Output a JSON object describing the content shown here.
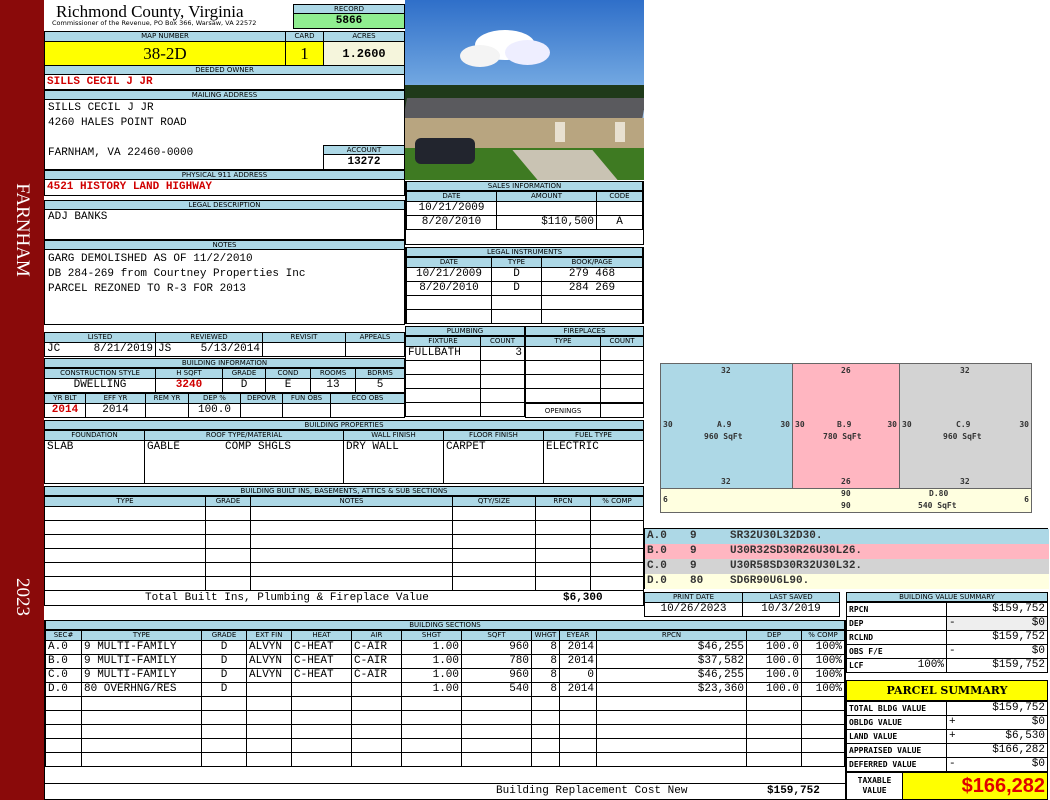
{
  "sidebar": {
    "district": "FARNHAM",
    "year": "2023"
  },
  "header": {
    "county": "Richmond County, Virginia",
    "subtitle": "Commissioner of the Revenue, PO Box 366, Warsaw, VA 22572",
    "record_label": "RECORD",
    "record": "5866"
  },
  "parcel": {
    "map_number_label": "MAP NUMBER",
    "map_number": "38-2D",
    "card_label": "CARD",
    "card": "1",
    "acres_label": "ACRES",
    "acres": "1.2600"
  },
  "owner": {
    "label": "DEEDED OWNER",
    "name": "SILLS CECIL J JR"
  },
  "mailing": {
    "label": "MAILING ADDRESS",
    "lines": [
      "SILLS CECIL J JR",
      "4260 HALES POINT ROAD",
      "",
      "FARNHAM, VA 22460-0000"
    ],
    "account_label": "ACCOUNT",
    "account": "13272"
  },
  "physical": {
    "label": "PHYSICAL 911 ADDRESS",
    "address": "4521 HISTORY LAND HIGHWAY"
  },
  "legal": {
    "label": "LEGAL DESCRIPTION",
    "text": "ADJ BANKS"
  },
  "notes": {
    "label": "NOTES",
    "lines": [
      "GARG DEMOLISHED AS OF 11/2/2010",
      "DB 284-269 from Courtney Properties Inc",
      "PARCEL REZONED TO R-3 FOR 2013"
    ]
  },
  "listing": {
    "listed_label": "LISTED",
    "listed_by": "JC",
    "listed_date": "8/21/2019",
    "reviewed_label": "REVIEWED",
    "reviewed_by": "JS",
    "reviewed_date": "5/13/2014",
    "revisit_label": "REVISIT",
    "revisit": "",
    "appeals_label": "APPEALS",
    "appeals": ""
  },
  "building_info": {
    "label": "BUILDING INFORMATION",
    "headers1": [
      "CONSTRUCTION STYLE",
      "H SQFT",
      "GRADE",
      "COND",
      "ROOMS",
      "BDRMS"
    ],
    "values1": [
      "DWELLING",
      "3240",
      "D",
      "E",
      "13",
      "5"
    ],
    "headers2": [
      "YR BLT",
      "EFF YR",
      "REM YR",
      "DEP %",
      "DEPOVR",
      "FUN OBS",
      "ECO OBS"
    ],
    "values2": [
      "2014",
      "2014",
      "",
      "100.0",
      "",
      "",
      ""
    ]
  },
  "sales": {
    "label": "SALES INFORMATION",
    "headers": [
      "DATE",
      "AMOUNT",
      "CODE"
    ],
    "rows": [
      [
        "10/21/2009",
        "",
        ""
      ],
      [
        "8/20/2010",
        "$110,500",
        "A"
      ]
    ]
  },
  "instruments": {
    "label": "LEGAL INSTRUMENTS",
    "headers": [
      "DATE",
      "TYPE",
      "BOOK/PAGE"
    ],
    "rows": [
      [
        "10/21/2009",
        "D",
        "279 468"
      ],
      [
        "8/20/2010",
        "D",
        "284 269"
      ],
      [
        "",
        "",
        ""
      ],
      [
        "",
        "",
        ""
      ]
    ]
  },
  "plumbing": {
    "label": "PLUMBING",
    "headers": [
      "FIXTURE",
      "COUNT"
    ],
    "rows": [
      [
        "FULLBATH",
        "3"
      ],
      [
        "",
        ""
      ],
      [
        "",
        ""
      ],
      [
        "",
        ""
      ],
      [
        "",
        ""
      ]
    ]
  },
  "fireplaces": {
    "label": "FIREPLACES",
    "headers": [
      "TYPE",
      "COUNT"
    ],
    "rows": [
      [
        "",
        ""
      ],
      [
        "",
        ""
      ],
      [
        "",
        ""
      ],
      [
        "",
        ""
      ]
    ],
    "openings_label": "OPENINGS",
    "openings": ""
  },
  "properties": {
    "label": "BUILDING PROPERTIES",
    "headers": [
      "FOUNDATION",
      "ROOF TYPE/MATERIAL",
      "WALL FINISH",
      "FLOOR FINISH",
      "FUEL TYPE"
    ],
    "foundation": "SLAB",
    "roof_type": "GABLE",
    "roof_material": "COMP SHGLS",
    "wall": "DRY WALL",
    "floor": "CARPET",
    "fuel": "ELECTRIC"
  },
  "builtins": {
    "label": "BUILDING BUILT INS, BASEMENTS, ATTICS & SUB SECTIONS",
    "headers": [
      "TYPE",
      "GRADE",
      "NOTES",
      "QTY/SIZE",
      "RPCN",
      "% COMP"
    ],
    "rows": [
      [
        "",
        "",
        "",
        "",
        "",
        ""
      ],
      [
        "",
        "",
        "",
        "",
        "",
        ""
      ],
      [
        "",
        "",
        "",
        "",
        "",
        ""
      ],
      [
        "",
        "",
        "",
        "",
        "",
        ""
      ],
      [
        "",
        "",
        "",
        "",
        "",
        ""
      ],
      [
        "",
        "",
        "",
        "",
        "",
        ""
      ]
    ],
    "total_label": "Total Built Ins, Plumbing & Fireplace Value",
    "total": "$6,300"
  },
  "dates": {
    "print_label": "PRINT DATE",
    "print_date": "10/26/2023",
    "saved_label": "LAST SAVED",
    "last_saved": "10/3/2019"
  },
  "sections": {
    "label": "BUILDING SECTIONS",
    "headers": [
      "SEC#",
      "TYPE",
      "GRADE",
      "EXT FIN",
      "HEAT",
      "AIR",
      "SHGT",
      "SQFT",
      "WHGT",
      "EYEAR",
      "RPCN",
      "DEP",
      "% COMP"
    ],
    "rows": [
      [
        "A.0",
        "9 MULTI-FAMILY",
        "D",
        "ALVYN",
        "C-HEAT",
        "C-AIR",
        "1.00",
        "960",
        "8",
        "2014",
        "$46,255",
        "100.0",
        "100%"
      ],
      [
        "B.0",
        "9 MULTI-FAMILY",
        "D",
        "ALVYN",
        "C-HEAT",
        "C-AIR",
        "1.00",
        "780",
        "8",
        "2014",
        "$37,582",
        "100.0",
        "100%"
      ],
      [
        "C.0",
        "9 MULTI-FAMILY",
        "D",
        "ALVYN",
        "C-HEAT",
        "C-AIR",
        "1.00",
        "960",
        "8",
        "0",
        "$46,255",
        "100.0",
        "100%"
      ],
      [
        "D.0",
        "80 OVERHNG/RES",
        "D",
        "",
        "",
        "",
        "1.00",
        "540",
        "8",
        "2014",
        "$23,360",
        "100.0",
        "100%"
      ],
      [
        "",
        "",
        "",
        "",
        "",
        "",
        "",
        "",
        "",
        "",
        "",
        "",
        ""
      ],
      [
        "",
        "",
        "",
        "",
        "",
        "",
        "",
        "",
        "",
        "",
        "",
        "",
        ""
      ],
      [
        "",
        "",
        "",
        "",
        "",
        "",
        "",
        "",
        "",
        "",
        "",
        "",
        ""
      ],
      [
        "",
        "",
        "",
        "",
        "",
        "",
        "",
        "",
        "",
        "",
        "",
        "",
        ""
      ],
      [
        "",
        "",
        "",
        "",
        "",
        "",
        "",
        "",
        "",
        "",
        "",
        "",
        ""
      ]
    ],
    "total_label": "Building Replacement Cost New",
    "total": "$159,752"
  },
  "sketch": {
    "sections": [
      {
        "label": "A.9",
        "sqft": "960 SqFt",
        "top": "32",
        "bottom": "32",
        "left": "30",
        "right": "30",
        "color": "#add8e6"
      },
      {
        "label": "B.9",
        "sqft": "780 SqFt",
        "top": "26",
        "bottom": "26",
        "left": "30",
        "right": "30",
        "color": "#ffb6c1"
      },
      {
        "label": "C.9",
        "sqft": "960 SqFt",
        "top": "32",
        "bottom": "32",
        "left": "30",
        "right": "30",
        "color": "#d3d3d3"
      },
      {
        "label": "D.80",
        "sqft": "540 SqFt",
        "top": "90",
        "bottom": "90",
        "left": "6",
        "right": "6",
        "color": "#ffffe0"
      }
    ],
    "codes": [
      [
        "A.0",
        "9",
        "SR32U30L32D30."
      ],
      [
        "B.0",
        "9",
        "U30R32SD30R26U30L26."
      ],
      [
        "C.0",
        "9",
        "U30R58SD30R32U30L32."
      ],
      [
        "D.0",
        "80",
        "SD6R90U6L90."
      ]
    ]
  },
  "value_summary": {
    "label": "BUILDING VALUE SUMMARY",
    "rpcn_label": "RPCN",
    "rpcn": "$159,752",
    "dep_label": "DEP",
    "dep_sign": "-",
    "dep": "$0",
    "rclnd_label": "RCLND",
    "rclnd": "$159,752",
    "obs_label": "OBS F/E",
    "obs_sign": "-",
    "obs": "$0",
    "lcf_label": "LCF",
    "lcf_pct": "100%",
    "lcf": "$159,752"
  },
  "parcel_summary": {
    "label": "PARCEL SUMMARY",
    "total_bldg_label": "TOTAL BLDG VALUE",
    "total_bldg": "$159,752",
    "obldg_label": "OBLDG VALUE",
    "obldg_sign": "+",
    "obldg": "$0",
    "land_label": "LAND VALUE",
    "land_sign": "+",
    "land": "$6,530",
    "appraised_label": "APPRAISED VALUE",
    "appraised": "$166,282",
    "deferred_label": "DEFERRED VALUE",
    "deferred_sign": "-",
    "deferred": "$0",
    "taxable_label": "TAXABLE VALUE",
    "taxable": "$166,282"
  },
  "colors": {
    "sidebar": "#8a0a0a",
    "header": "#add8e6",
    "highlight": "#ffff00",
    "record": "#90ee90",
    "emphasis": "#d00000"
  }
}
